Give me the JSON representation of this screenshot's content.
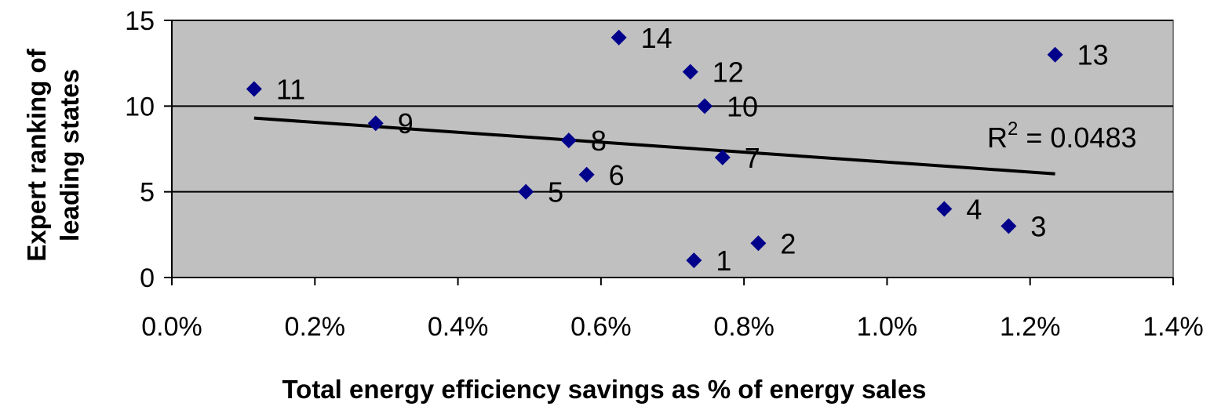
{
  "chart_data": {
    "type": "scatter",
    "xlabel": "Total energy efficiency savings as % of energy sales",
    "ylabel_lines": [
      "Expert ranking of",
      "leading states"
    ],
    "xlim": [
      0.0,
      1.4
    ],
    "ylim": [
      0,
      15
    ],
    "x_ticks": [
      0.0,
      0.2,
      0.4,
      0.6,
      0.8,
      1.0,
      1.2,
      1.4
    ],
    "x_tick_labels": [
      "0.0%",
      "0.2%",
      "0.4%",
      "0.6%",
      "0.8%",
      "1.0%",
      "1.2%",
      "1.4%"
    ],
    "y_ticks": [
      0,
      5,
      10,
      15
    ],
    "y_tick_labels": [
      "0",
      "5",
      "10",
      "15"
    ],
    "grid": "horizontal",
    "colors": {
      "plot_bg": "#c0c0c0",
      "marker": "#00008b",
      "trend": "#000000"
    },
    "points": [
      {
        "x": 0.73,
        "y": 1,
        "label": "1"
      },
      {
        "x": 0.82,
        "y": 2,
        "label": "2"
      },
      {
        "x": 1.17,
        "y": 3,
        "label": "3"
      },
      {
        "x": 1.08,
        "y": 4,
        "label": "4"
      },
      {
        "x": 0.495,
        "y": 5,
        "label": "5"
      },
      {
        "x": 0.58,
        "y": 6,
        "label": "6"
      },
      {
        "x": 0.77,
        "y": 7,
        "label": "7"
      },
      {
        "x": 0.555,
        "y": 8,
        "label": "8"
      },
      {
        "x": 0.285,
        "y": 9,
        "label": "9"
      },
      {
        "x": 0.745,
        "y": 10,
        "label": "10"
      },
      {
        "x": 0.115,
        "y": 11,
        "label": "11"
      },
      {
        "x": 0.725,
        "y": 12,
        "label": "12"
      },
      {
        "x": 1.235,
        "y": 13,
        "label": "13"
      },
      {
        "x": 0.625,
        "y": 14,
        "label": "14"
      }
    ],
    "trendline": {
      "type": "linear",
      "x": [
        0.115,
        1.235
      ],
      "y": [
        9.3,
        6.05
      ]
    },
    "annotation": {
      "r2_prefix": "R",
      "r2_sup": "2",
      "r2_value": " = 0.0483"
    }
  }
}
